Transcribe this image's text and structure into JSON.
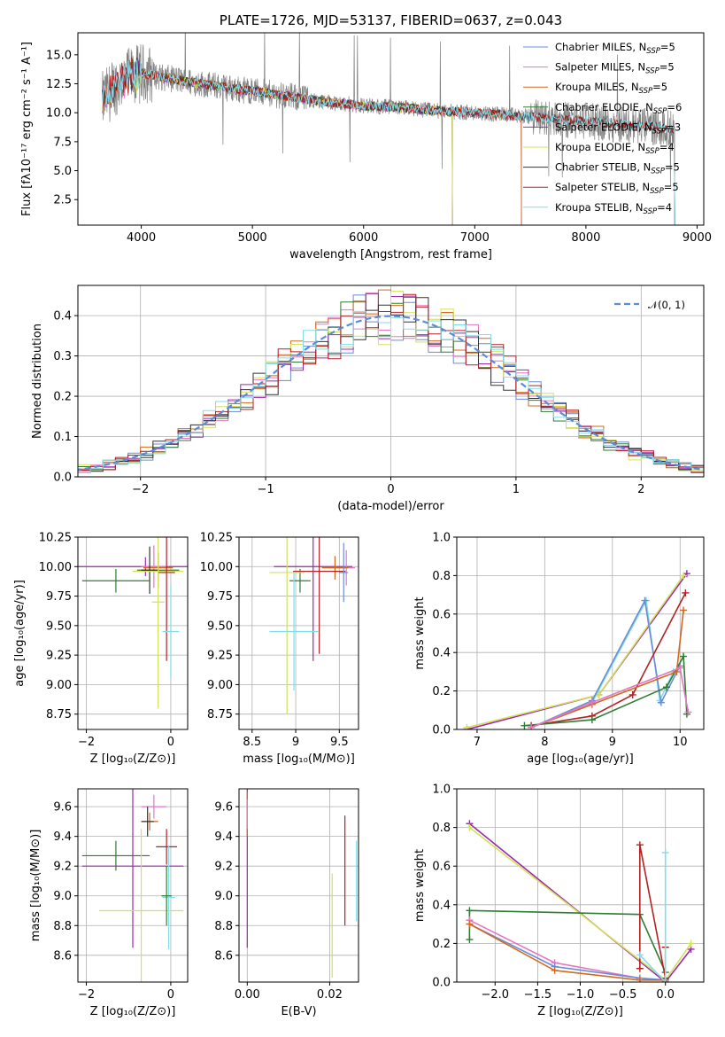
{
  "chart_data": [
    {
      "id": "spectrum",
      "type": "line",
      "title": "PLATE=1726, MJD=53137, FIBERID=0637, z=0.043",
      "xlabel": "wavelength [Angstrom, rest frame]",
      "ylabel": "Flux [fλ10⁻¹⁷ erg cm⁻² s⁻¹ A⁻¹]",
      "xlim": [
        3430,
        9060
      ],
      "ylim": [
        0.3,
        16.9
      ],
      "xticks": [
        4000,
        5000,
        6000,
        7000,
        8000,
        9000
      ],
      "yticks": [
        2.5,
        5.0,
        7.5,
        10.0,
        12.5,
        15.0
      ],
      "grid": false,
      "legend_position": "right",
      "data_series": {
        "name": "data",
        "color": "#808080"
      },
      "continuum": {
        "x": [
          3650,
          3720,
          3800,
          3900,
          4000,
          4100,
          4200,
          4300,
          4400,
          4500,
          4600,
          4700,
          4800,
          4900,
          5000,
          5200,
          5400,
          5600,
          5800,
          6000,
          6200,
          6400,
          6600,
          6800,
          7000,
          7200,
          7400,
          7600,
          7800,
          8000,
          8200,
          8400,
          8600,
          8800
        ],
        "y": [
          11.0,
          11.8,
          12.6,
          13.1,
          13.4,
          13.3,
          13.0,
          12.9,
          12.7,
          12.6,
          12.4,
          12.3,
          12.1,
          12.0,
          11.9,
          11.6,
          11.3,
          11.0,
          10.8,
          10.6,
          10.5,
          10.4,
          10.2,
          10.1,
          10.0,
          9.9,
          9.7,
          9.6,
          9.4,
          9.3,
          9.1,
          8.9,
          8.8,
          8.6
        ]
      },
      "series": [
        {
          "name": "Chabrier MILES, N_SSP=5",
          "label_main": "Chabrier MILES, N",
          "label_sub": "SSP",
          "label_tail": "=5",
          "color": "#6C8BD5",
          "x_range": [
            3650,
            7420
          ]
        },
        {
          "name": "Salpeter MILES, N_SSP=5",
          "label_main": "Salpeter MILES, N",
          "label_sub": "SSP",
          "label_tail": "=5",
          "color": "#E377C2",
          "x_range": [
            3650,
            7420
          ]
        },
        {
          "name": "Kroupa MILES, N_SSP=5",
          "label_main": "Kroupa MILES, N",
          "label_sub": "SSP",
          "label_tail": "=5",
          "color": "#D2691E",
          "x_range": [
            3650,
            7420
          ]
        },
        {
          "name": "Chabrier ELODIE, N_SSP=6",
          "label_main": "Chabrier ELODIE, N",
          "label_sub": "SSP",
          "label_tail": "=6",
          "color": "#2E7D32",
          "x_range": [
            3900,
            6800
          ]
        },
        {
          "name": "Salpeter ELODIE, N_SSP=3",
          "label_main": "Salpeter ELODIE, N",
          "label_sub": "SSP",
          "label_tail": "=3",
          "color": "#9C27B0",
          "x_range": [
            3900,
            6800
          ]
        },
        {
          "name": "Kroupa ELODIE, N_SSP=4",
          "label_main": "Kroupa ELODIE, N",
          "label_sub": "SSP",
          "label_tail": "=4",
          "color": "#D4E157",
          "x_range": [
            3900,
            6800
          ]
        },
        {
          "name": "Chabrier STELIB, N_SSP=5",
          "label_main": "Chabrier STELIB, N",
          "label_sub": "SSP",
          "label_tail": "=5",
          "color": "#333333",
          "x_range": [
            3650,
            8800
          ]
        },
        {
          "name": "Salpeter STELIB, N_SSP=5",
          "label_main": "Salpeter STELIB, N",
          "label_sub": "SSP",
          "label_tail": "=5",
          "color": "#B22222",
          "x_range": [
            3650,
            8800
          ]
        },
        {
          "name": "Kroupa STELIB, N_SSP=4",
          "label_main": "Kroupa STELIB, N",
          "label_sub": "SSP",
          "label_tail": "=4",
          "color": "#80DEEA",
          "x_range": [
            3650,
            8800
          ]
        }
      ]
    },
    {
      "id": "residuals",
      "type": "line",
      "xlabel": "(data-model)/error",
      "ylabel": "Normed distribution",
      "xlim": [
        -2.5,
        2.5
      ],
      "ylim": [
        0,
        0.475
      ],
      "xticks": [
        -2,
        -1,
        0,
        1,
        2
      ],
      "yticks": [
        0.0,
        0.1,
        0.2,
        0.3,
        0.4
      ],
      "grid": true,
      "legend_position": "top-right",
      "bin_width": 0.1,
      "reference": {
        "name": "N(0,1)",
        "label": "𝒩(0, 1)",
        "color": "#5B8BD9",
        "style": "dashed"
      }
    },
    {
      "id": "age_vs_Z",
      "type": "scatter",
      "xlabel": "Z [log₁₀(Z/Z⊙)]",
      "ylabel": "age  [log₁₀(age/yr)]",
      "xlim": [
        -2.2,
        0.4
      ],
      "ylim": [
        8.62,
        10.25
      ],
      "xticks": [
        -2,
        0
      ],
      "yticks": [
        8.75,
        9.0,
        9.25,
        9.5,
        9.75,
        10.0,
        10.25
      ],
      "grid": true,
      "points": [
        {
          "x": -0.6,
          "y": 10.0,
          "xerr": 1.6,
          "yerr": 0.08,
          "color": "#9C27B0"
        },
        {
          "x": -0.4,
          "y": 10.0,
          "xerr": 0.3,
          "yerr": 0.18,
          "color": "#E377C2"
        },
        {
          "x": -0.3,
          "y": 9.99,
          "xerr": 0.35,
          "yerr": 0.1,
          "color": "#D2691E"
        },
        {
          "x": -0.3,
          "y": 9.97,
          "xerr": 0.5,
          "yerr": 0.15,
          "color": "#2E7D32"
        },
        {
          "x": -0.5,
          "y": 9.97,
          "xerr": 0.2,
          "yerr": 0.2,
          "color": "#333333"
        },
        {
          "x": -0.3,
          "y": 9.96,
          "xerr": 0.6,
          "yerr": 0.1,
          "color": "#D4E157"
        },
        {
          "x": -0.1,
          "y": 9.95,
          "xerr": 0.2,
          "yerr": 0.75,
          "color": "#B22222"
        },
        {
          "x": -1.3,
          "y": 9.88,
          "xerr": 0.8,
          "yerr": 0.1,
          "color": "#2E7D32"
        },
        {
          "x": 0.0,
          "y": 9.45,
          "xerr": 0.2,
          "yerr": 0.4,
          "color": "#80DEEA"
        },
        {
          "x": -0.3,
          "y": 9.7,
          "xerr": 0.15,
          "yerr": 0.9,
          "color": "#D4E157"
        }
      ]
    },
    {
      "id": "age_vs_mass",
      "type": "scatter",
      "xlabel": "mass [log₁₀(M/M⊙)]",
      "ylabel": "",
      "xlim": [
        8.35,
        9.72
      ],
      "ylim": [
        8.62,
        10.25
      ],
      "xticks": [
        8.5,
        9.0,
        9.5
      ],
      "yticks": [
        8.75,
        9.0,
        9.25,
        9.5,
        9.75,
        10.0,
        10.25
      ],
      "grid": true,
      "points": [
        {
          "x": 9.2,
          "y": 10.0,
          "xerr": 0.45,
          "yerr": 0.8,
          "color": "#9C27B0"
        },
        {
          "x": 9.58,
          "y": 9.99,
          "xerr": 0.1,
          "yerr": 0.15,
          "color": "#E377C2"
        },
        {
          "x": 9.45,
          "y": 9.99,
          "xerr": 0.15,
          "yerr": 0.1,
          "color": "#D2691E"
        },
        {
          "x": 9.05,
          "y": 9.88,
          "xerr": 0.12,
          "yerr": 0.1,
          "color": "#2E7D32"
        },
        {
          "x": 9.27,
          "y": 9.96,
          "xerr": 0.3,
          "yerr": 0.7,
          "color": "#B22222"
        },
        {
          "x": 8.9,
          "y": 9.95,
          "xerr": 0.2,
          "yerr": 1.2,
          "color": "#D4E157"
        },
        {
          "x": 8.98,
          "y": 9.45,
          "xerr": 0.28,
          "yerr": 0.5,
          "color": "#80DEEA"
        },
        {
          "x": 9.55,
          "y": 9.95,
          "xerr": 0.05,
          "yerr": 0.25,
          "color": "#6C8BD5"
        }
      ]
    },
    {
      "id": "massweight_vs_age",
      "type": "line",
      "xlabel": "age  [log₁₀(age/yr)]",
      "ylabel": "mass weight",
      "xlim": [
        6.7,
        10.35
      ],
      "ylim": [
        0,
        1.0
      ],
      "xticks": [
        7,
        8,
        9,
        10
      ],
      "yticks": [
        0.0,
        0.2,
        0.4,
        0.6,
        0.8,
        1.0
      ],
      "grid": true,
      "series": [
        {
          "name": "Salpeter ELODIE",
          "color": "#9C27B0",
          "x": [
            6.85,
            8.8,
            10.1
          ],
          "y": [
            0.0,
            0.18,
            0.81
          ]
        },
        {
          "name": "Kroupa ELODIE",
          "color": "#D4E157",
          "x": [
            6.85,
            8.8,
            10.05
          ],
          "y": [
            0.01,
            0.18,
            0.8
          ]
        },
        {
          "name": "Kroupa STELIB",
          "color": "#80DEEA",
          "x": [
            7.8,
            8.7,
            9.5,
            9.7,
            9.9
          ],
          "y": [
            0.01,
            0.14,
            0.67,
            0.15,
            0.3
          ]
        },
        {
          "name": "Chabrier STELIB",
          "color": "#6C8BD5",
          "x": [
            7.8,
            8.7,
            9.48,
            9.72,
            10.0
          ],
          "y": [
            0.01,
            0.15,
            0.67,
            0.14,
            0.33
          ]
        },
        {
          "name": "Salpeter STELIB",
          "color": "#B22222",
          "x": [
            7.8,
            8.7,
            9.3,
            10.08
          ],
          "y": [
            0.02,
            0.07,
            0.18,
            0.71
          ]
        },
        {
          "name": "Chabrier ELODIE",
          "color": "#2E7D32",
          "x": [
            7.7,
            8.7,
            9.8,
            10.05,
            10.1
          ],
          "y": [
            0.02,
            0.05,
            0.22,
            0.38,
            0.08
          ]
        },
        {
          "name": "Kroupa MILES",
          "color": "#D2691E",
          "x": [
            7.8,
            8.7,
            9.95,
            10.05
          ],
          "y": [
            0.01,
            0.13,
            0.3,
            0.62
          ]
        },
        {
          "name": "Salpeter MILES",
          "color": "#E377C2",
          "x": [
            7.8,
            8.7,
            10.0,
            10.12
          ],
          "y": [
            0.01,
            0.14,
            0.32,
            0.09
          ]
        }
      ]
    },
    {
      "id": "mass_vs_Z",
      "type": "scatter",
      "xlabel": "Z [log₁₀(Z/Z⊙)]",
      "ylabel": "mass [log₁₀(M/M⊙)]",
      "xlim": [
        -2.2,
        0.4
      ],
      "ylim": [
        8.42,
        9.72
      ],
      "xticks": [
        -2,
        0
      ],
      "yticks": [
        8.6,
        8.8,
        9.0,
        9.2,
        9.4,
        9.6
      ],
      "grid": true,
      "points": [
        {
          "x": -0.4,
          "y": 9.6,
          "xerr": 0.3,
          "yerr": 0.08,
          "color": "#E377C2"
        },
        {
          "x": -0.5,
          "y": 9.5,
          "xerr": 0.2,
          "yerr": 0.06,
          "color": "#D2691E"
        },
        {
          "x": -0.55,
          "y": 9.5,
          "xerr": 0.15,
          "yerr": 0.1,
          "color": "#333333"
        },
        {
          "x": -1.3,
          "y": 9.27,
          "xerr": 0.8,
          "yerr": 0.1,
          "color": "#2E7D32"
        },
        {
          "x": -0.9,
          "y": 9.2,
          "xerr": 1.2,
          "yerr": 0.55,
          "color": "#9C27B0"
        },
        {
          "x": -0.1,
          "y": 9.33,
          "xerr": 0.25,
          "yerr": 0.12,
          "color": "#B22222"
        },
        {
          "x": -0.05,
          "y": 8.99,
          "xerr": 0.15,
          "yerr": 0.35,
          "color": "#80DEEA"
        },
        {
          "x": -0.7,
          "y": 8.9,
          "xerr": 1.0,
          "yerr": 0.55,
          "color": "#D4E157"
        },
        {
          "x": -0.1,
          "y": 9.0,
          "xerr": 0.12,
          "yerr": 0.2,
          "color": "#2E7D32"
        }
      ]
    },
    {
      "id": "mass_vs_EBV",
      "type": "scatter",
      "xlabel": "E(B-V)",
      "ylabel": "",
      "xlim": [
        -0.002,
        0.027
      ],
      "ylim": [
        8.42,
        9.72
      ],
      "xticks": [
        0.0,
        0.02
      ],
      "xtick_labels": [
        "0.00",
        "0.02"
      ],
      "yticks": [
        8.6,
        8.8,
        9.0,
        9.2,
        9.4,
        9.6
      ],
      "grid": true,
      "points": [
        {
          "x": 0.0,
          "y": 9.2,
          "yerr": 0.55,
          "color": "#9C27B0"
        },
        {
          "x": 0.0,
          "y": 9.55,
          "yerr": 0.15,
          "color": "#D2691E"
        },
        {
          "x": 0.0,
          "y": 9.55,
          "yerr": 0.1,
          "color": "#E377C2"
        },
        {
          "x": 0.0206,
          "y": 8.8,
          "yerr": 0.35,
          "color": "#D4E157"
        },
        {
          "x": 0.0237,
          "y": 9.17,
          "yerr": 0.37,
          "color": "#B22222"
        },
        {
          "x": 0.0265,
          "y": 9.1,
          "yerr": 0.27,
          "color": "#80DEEA"
        }
      ]
    },
    {
      "id": "massweight_vs_Z",
      "type": "line",
      "xlabel": "Z [log₁₀(Z/Z⊙)]",
      "ylabel": "mass weight",
      "xlim": [
        -2.45,
        0.45
      ],
      "ylim": [
        0,
        1.0
      ],
      "xticks": [
        -2.0,
        -1.5,
        -1.0,
        -0.5,
        0.0
      ],
      "xtick_labels": [
        "−2.0",
        "−1.5",
        "−1.0",
        "−0.5",
        "0.0"
      ],
      "yticks": [
        0.0,
        0.2,
        0.4,
        0.6,
        0.8,
        1.0
      ],
      "grid": true,
      "series": [
        {
          "name": "Salpeter ELODIE",
          "color": "#9C27B0",
          "x": [
            -2.3,
            0.0,
            0.3
          ],
          "y": [
            0.82,
            0.0,
            0.17
          ]
        },
        {
          "name": "Kroupa ELODIE",
          "color": "#D4E157",
          "x": [
            -2.3,
            0.0,
            0.3
          ],
          "y": [
            0.8,
            0.01,
            0.2
          ]
        },
        {
          "name": "Chabrier ELODIE",
          "color": "#2E7D32",
          "x": [
            -2.3,
            -2.3,
            -0.3,
            0.0,
            0.0
          ],
          "y": [
            0.22,
            0.37,
            0.35,
            0.05,
            0.0
          ]
        },
        {
          "name": "Salpeter MILES",
          "color": "#E377C2",
          "x": [
            -2.3,
            -1.3,
            -0.3,
            0.0
          ],
          "y": [
            0.32,
            0.1,
            0.02,
            0.01
          ]
        },
        {
          "name": "Chabrier MILES",
          "color": "#6C8BD5",
          "x": [
            -2.3,
            -1.3,
            -0.3,
            0.0
          ],
          "y": [
            0.3,
            0.08,
            0.02,
            0.01
          ]
        },
        {
          "name": "Kroupa MILES",
          "color": "#D2691E",
          "x": [
            -2.3,
            -1.3,
            -0.3,
            0.0
          ],
          "y": [
            0.3,
            0.06,
            0.01,
            0.01
          ]
        },
        {
          "name": "Salpeter STELIB",
          "color": "#B22222",
          "x": [
            -0.3,
            -0.3,
            0.0,
            0.0
          ],
          "y": [
            0.07,
            0.71,
            0.02,
            0.18
          ]
        },
        {
          "name": "Kroupa STELIB",
          "color": "#80DEEA",
          "x": [
            -0.3,
            0.0,
            0.0
          ],
          "y": [
            0.14,
            0.0,
            0.67
          ]
        }
      ]
    }
  ]
}
